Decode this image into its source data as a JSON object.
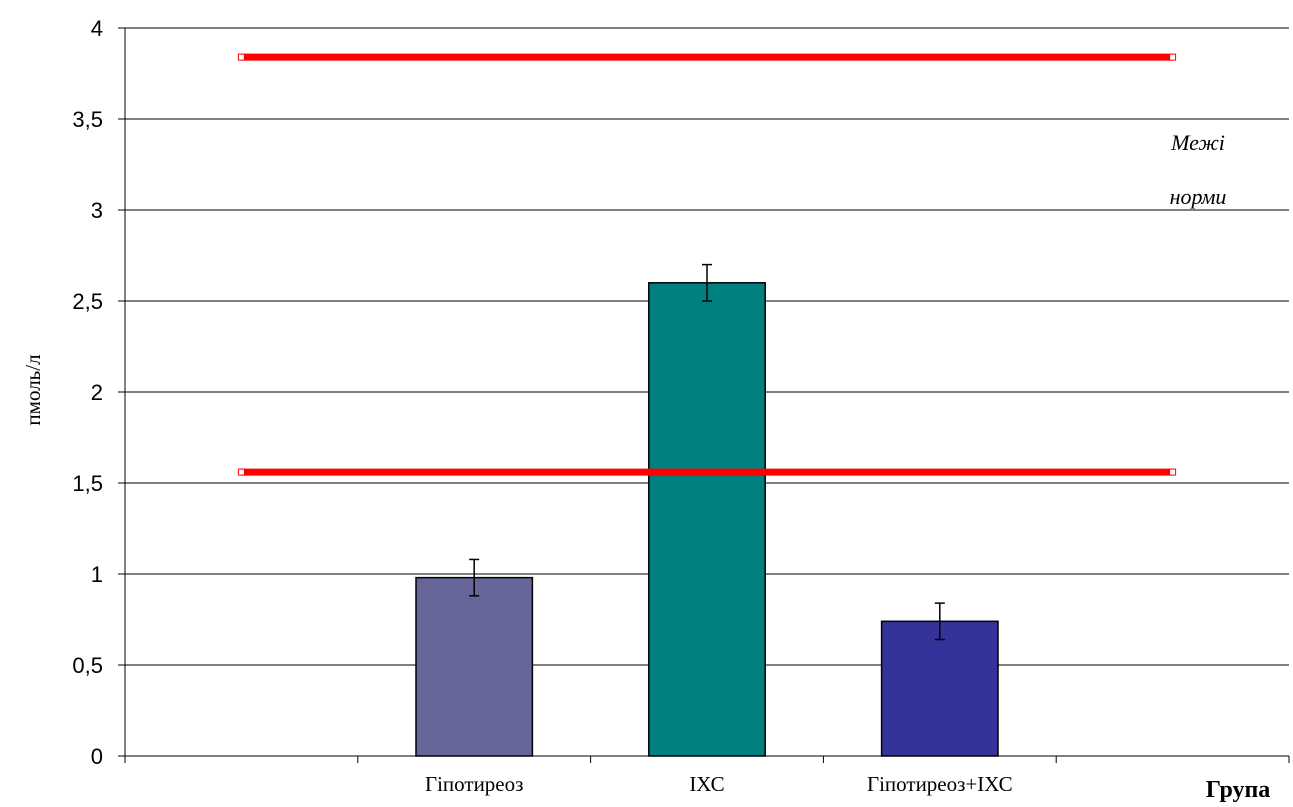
{
  "chart_data": {
    "type": "bar",
    "title": "",
    "xlabel": "Група",
    "ylabel": "пмоль/л",
    "ylim": [
      0,
      4
    ],
    "yticks": [
      "0",
      "0,5",
      "1",
      "1,5",
      "2",
      "2,5",
      "3",
      "3,5",
      "4"
    ],
    "ytick_values": [
      0,
      0.5,
      1,
      1.5,
      2,
      2.5,
      3,
      3.5,
      4
    ],
    "grid": true,
    "categories": [
      "Гіпотиреоз",
      "ІХС",
      "Гіпотиреоз+ІХС"
    ],
    "values": [
      0.98,
      2.6,
      0.74
    ],
    "errors": [
      0.1,
      0.1,
      0.1
    ],
    "bar_colors": [
      "#666699",
      "#008080",
      "#333399"
    ],
    "reference_lines": [
      {
        "value": 3.84,
        "color": "#ff0000"
      },
      {
        "value": 1.56,
        "color": "#ff0000"
      }
    ],
    "annotation": {
      "line1": "Межі",
      "line2": "норми"
    }
  }
}
